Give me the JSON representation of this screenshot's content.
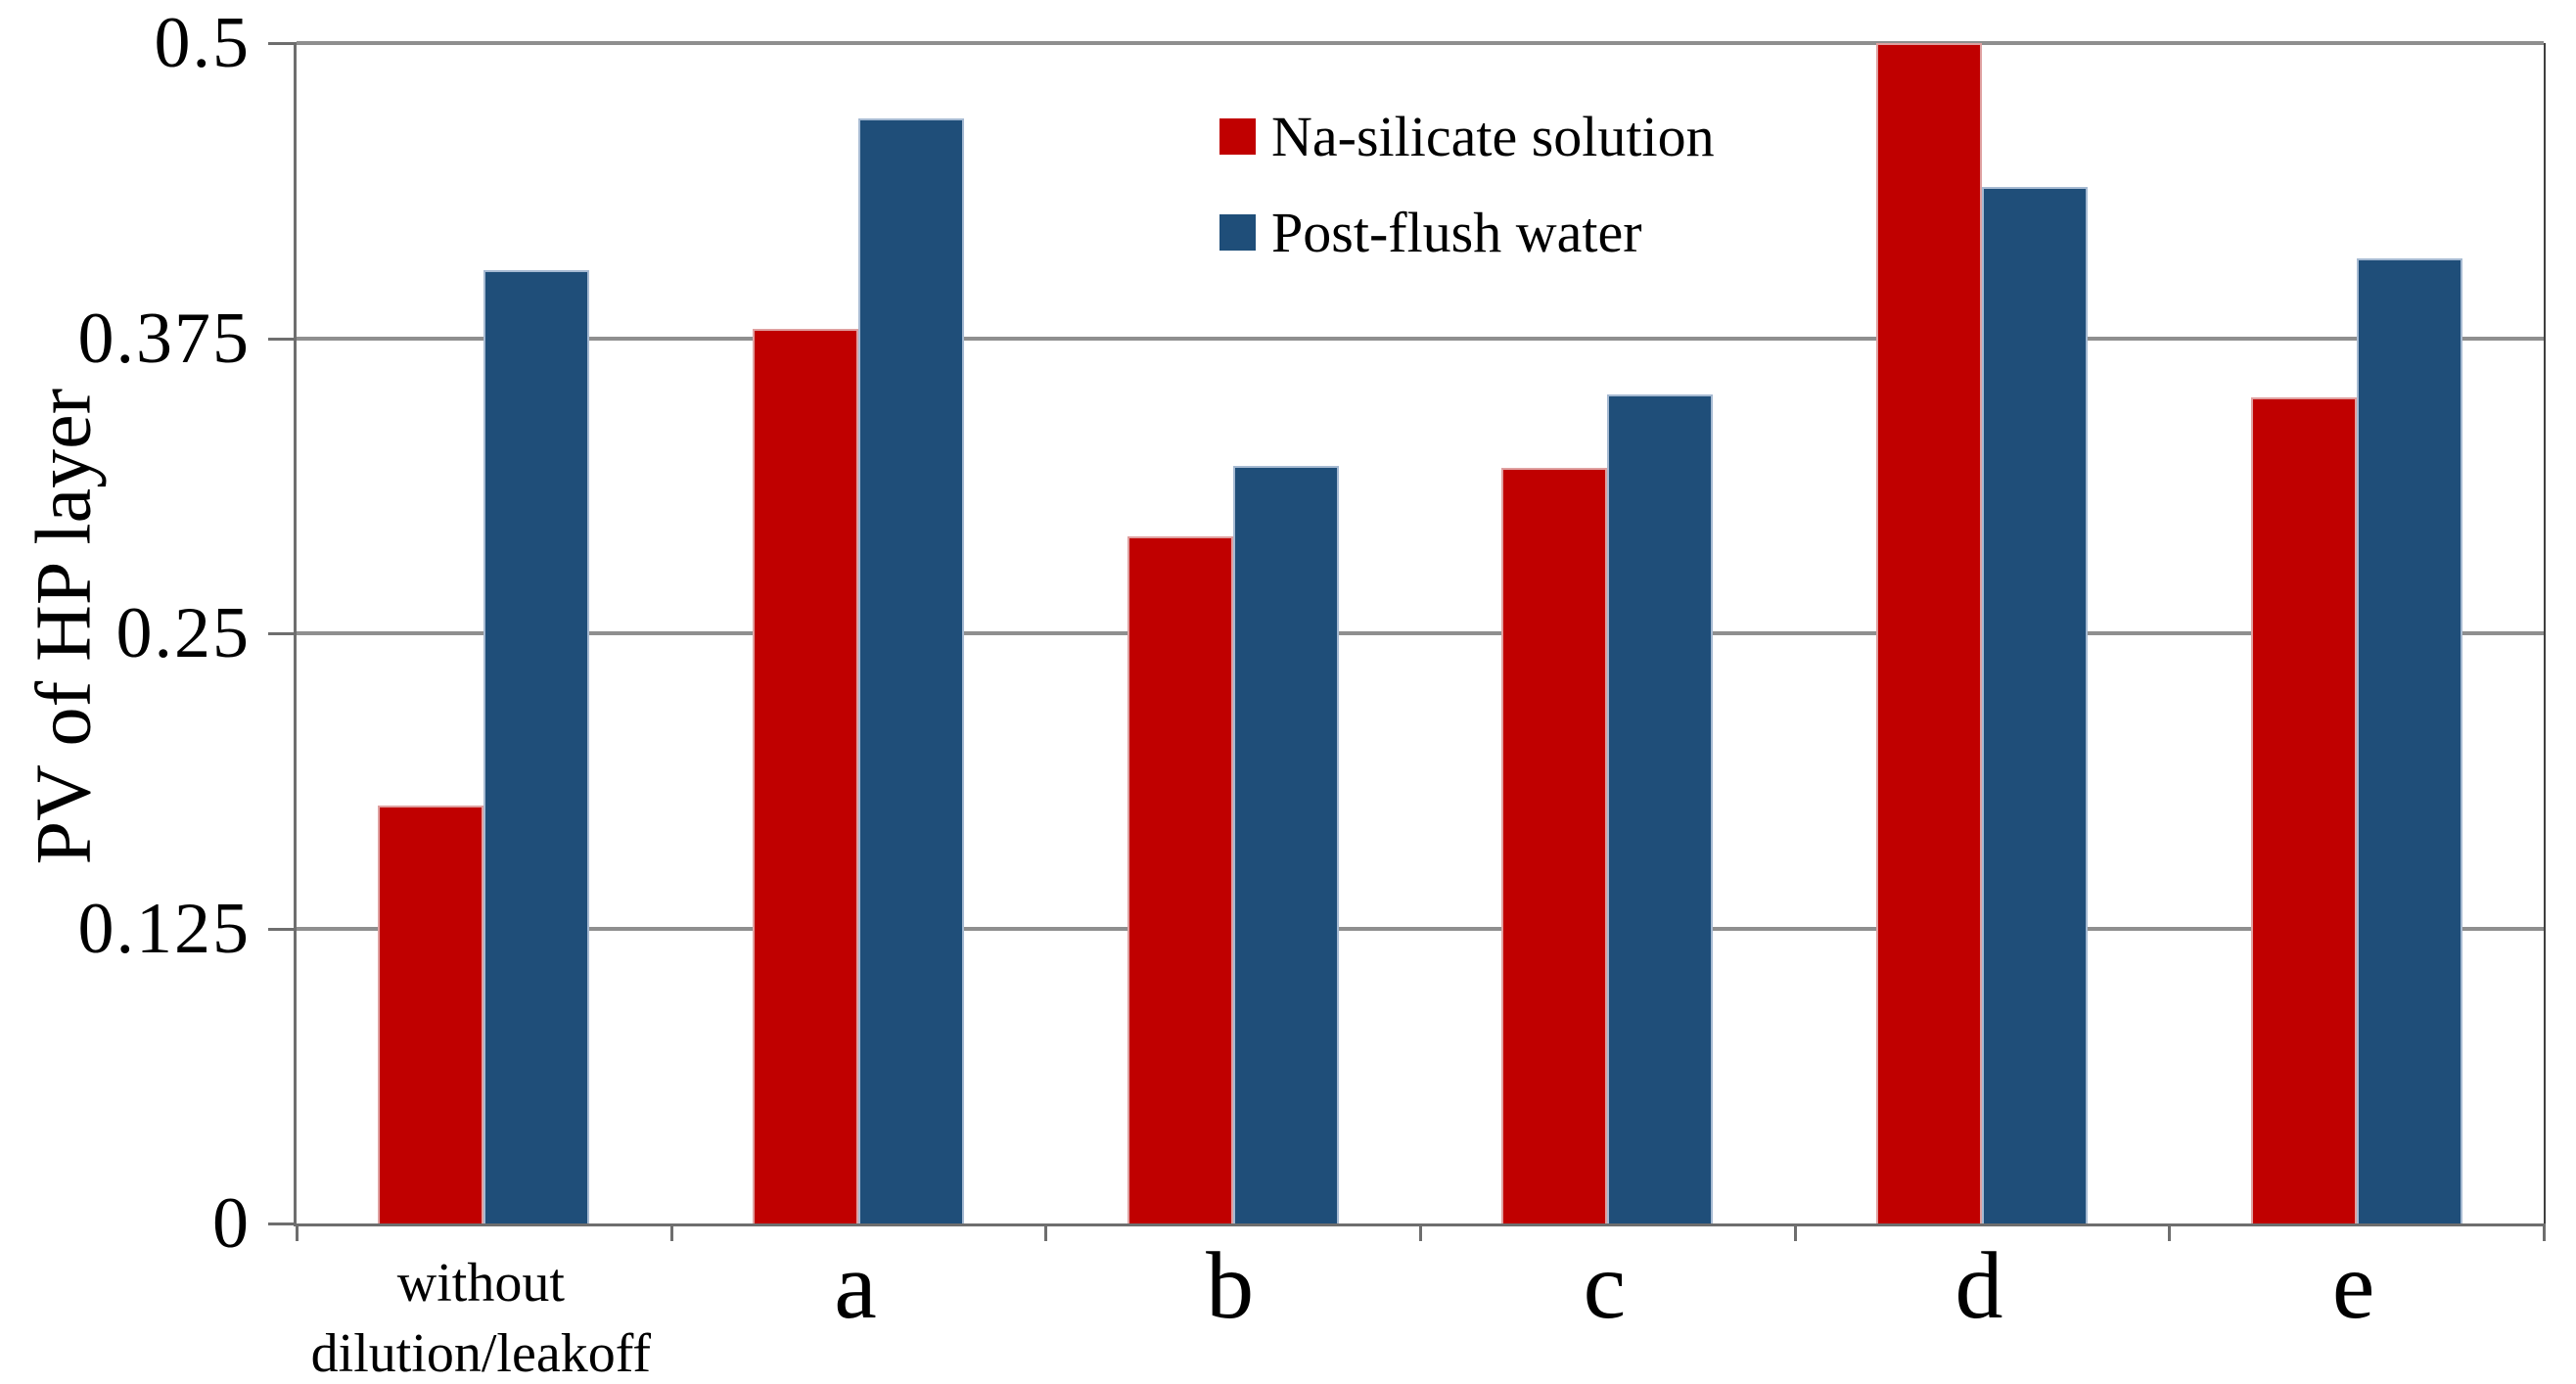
{
  "figure": {
    "background": "#ffffff",
    "plot_border_color": "#6e6e6e",
    "gridline_color": "#8f8f8f"
  },
  "chart_data": {
    "type": "bar",
    "title": "",
    "xlabel": "",
    "ylabel": "PV of HP layer",
    "ylim": [
      0,
      0.5
    ],
    "yticks": [
      0,
      0.125,
      0.25,
      0.375,
      0.5
    ],
    "ytick_labels": [
      "0",
      "0.125",
      "0.25",
      "0.375",
      "0.5"
    ],
    "grid": "horizontal",
    "legend_position": "top-center",
    "categories": [
      "without dilution/leakoff",
      "a",
      "b",
      "c",
      "d",
      "e"
    ],
    "category_label_lines": [
      [
        "without",
        "dilution/leakoff"
      ],
      [
        "a"
      ],
      [
        "b"
      ],
      [
        "c"
      ],
      [
        "d"
      ],
      [
        "e"
      ]
    ],
    "series": [
      {
        "name": "Na-silicate solution",
        "color": "#c00000",
        "border_color": "#dfa0a0",
        "values": [
          0.177,
          0.379,
          0.291,
          0.32,
          0.5,
          0.35
        ]
      },
      {
        "name": "Post-flush water",
        "color": "#1f4e79",
        "border_color": "#a6bad2",
        "values": [
          0.404,
          0.468,
          0.321,
          0.351,
          0.439,
          0.409
        ]
      }
    ]
  }
}
